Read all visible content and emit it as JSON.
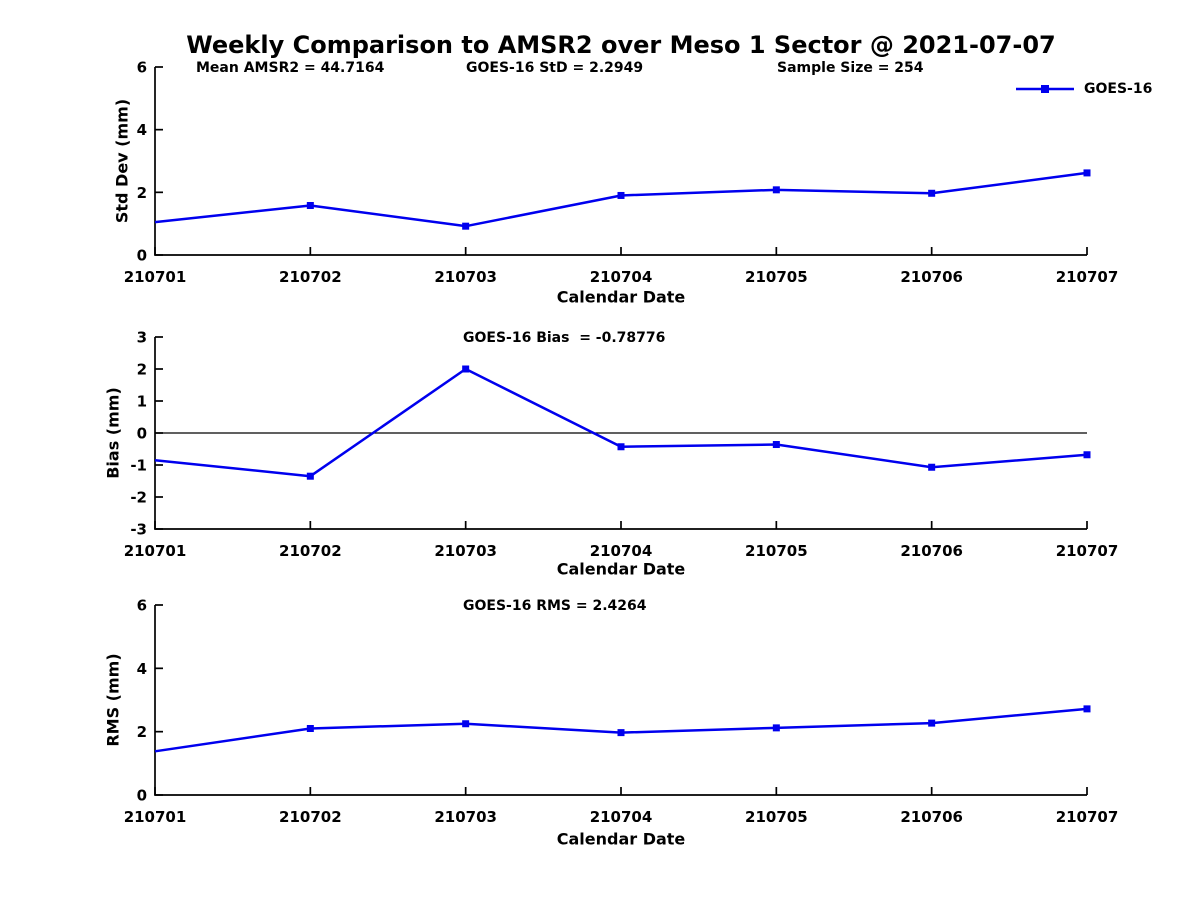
{
  "figure": {
    "title": "Weekly Comparison to AMSR2 over Meso 1 Sector @ 2021-07-07",
    "background": "#ffffff"
  },
  "colors": {
    "line": "#0000ee",
    "axis": "#000000",
    "text": "#000000"
  },
  "legend": {
    "label": "GOES-16",
    "position": "top-right",
    "marker": "filled-square",
    "boxed": false
  },
  "chart_data": [
    {
      "type": "line",
      "name": "std-dev",
      "annotations": [
        "Mean AMSR2 = 44.7164",
        "GOES-16 StD = 2.2949",
        "Sample Size = 254"
      ],
      "categories": [
        "210701",
        "210702",
        "210703",
        "210704",
        "210705",
        "210706",
        "210707"
      ],
      "series": [
        {
          "name": "GOES-16",
          "values": [
            1.05,
            1.58,
            0.92,
            1.9,
            2.08,
            1.97,
            2.62
          ]
        }
      ],
      "xlabel": "Calendar Date",
      "ylabel": "Std Dev (mm)",
      "ylim": [
        0,
        6
      ],
      "yticks": [
        0,
        2,
        4,
        6
      ],
      "grid": false,
      "legend_entries": [
        "GOES-16"
      ]
    },
    {
      "type": "line",
      "name": "bias",
      "title": "GOES-16 Bias  = -0.78776",
      "categories": [
        "210701",
        "210702",
        "210703",
        "210704",
        "210705",
        "210706",
        "210707"
      ],
      "series": [
        {
          "name": "GOES-16",
          "values": [
            -0.85,
            -1.35,
            2.0,
            -0.43,
            -0.36,
            -1.07,
            -0.68
          ]
        }
      ],
      "xlabel": "Calendar Date",
      "ylabel": "Bias (mm)",
      "ylim": [
        -3,
        3
      ],
      "yticks": [
        -3,
        -2,
        -1,
        0,
        1,
        2,
        3
      ],
      "zero_line": true,
      "grid": false
    },
    {
      "type": "line",
      "name": "rms",
      "title": "GOES-16 RMS = 2.4264",
      "categories": [
        "210701",
        "210702",
        "210703",
        "210704",
        "210705",
        "210706",
        "210707"
      ],
      "series": [
        {
          "name": "GOES-16",
          "values": [
            1.38,
            2.1,
            2.25,
            1.97,
            2.12,
            2.27,
            2.72
          ]
        }
      ],
      "xlabel": "Calendar Date",
      "ylabel": "RMS (mm)",
      "ylim": [
        0,
        6
      ],
      "yticks": [
        0,
        2,
        4,
        6
      ],
      "grid": false
    }
  ]
}
